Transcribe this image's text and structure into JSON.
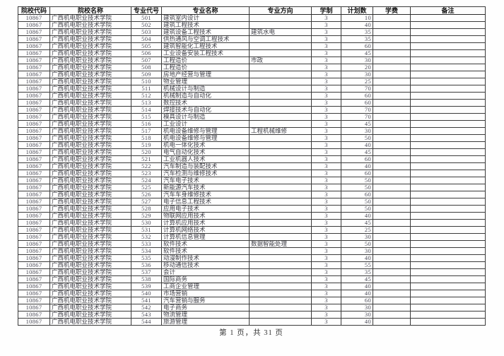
{
  "page": {
    "footer": "第 1 页，共 31 页"
  },
  "colors": {
    "background": "#ffffff",
    "border": "#2a2a2a",
    "text": "#42424a",
    "header_text": "#141414"
  },
  "table": {
    "columns": [
      "院校代码",
      "院校名称",
      "专业代号",
      "专业名称",
      "专业方向",
      "学制",
      "计划数",
      "学费",
      "备注"
    ],
    "rows": [
      [
        "10867",
        "广西机电职业技术学院",
        "501",
        "建筑室内设计",
        "",
        "3",
        "10",
        "",
        ""
      ],
      [
        "10867",
        "广西机电职业技术学院",
        "502",
        "建筑工程技术",
        "",
        "3",
        "40",
        "",
        ""
      ],
      [
        "10867",
        "广西机电职业技术学院",
        "503",
        "建筑设备工程技术",
        "建筑水电",
        "3",
        "35",
        "",
        ""
      ],
      [
        "10867",
        "广西机电职业技术学院",
        "504",
        "供热通风与空调工程技术",
        "",
        "3",
        "35",
        "",
        ""
      ],
      [
        "10867",
        "广西机电职业技术学院",
        "505",
        "建筑智能化工程技术",
        "",
        "3",
        "60",
        "",
        ""
      ],
      [
        "10867",
        "广西机电职业技术学院",
        "506",
        "工业设备安装工程技术",
        "",
        "3",
        "45",
        "",
        ""
      ],
      [
        "10867",
        "广西机电职业技术学院",
        "507",
        "工程造价",
        "市政",
        "3",
        "30",
        "",
        ""
      ],
      [
        "10867",
        "广西机电职业技术学院",
        "508",
        "工程造价",
        "",
        "3",
        "20",
        "",
        ""
      ],
      [
        "10867",
        "广西机电职业技术学院",
        "509",
        "房地产经营与管理",
        "",
        "3",
        "30",
        "",
        ""
      ],
      [
        "10867",
        "广西机电职业技术学院",
        "510",
        "物业管理",
        "",
        "3",
        "25",
        "",
        ""
      ],
      [
        "10867",
        "广西机电职业技术学院",
        "511",
        "机械设计与制造",
        "",
        "3",
        "70",
        "",
        ""
      ],
      [
        "10867",
        "广西机电职业技术学院",
        "512",
        "机械制造与自动化",
        "",
        "3",
        "60",
        "",
        ""
      ],
      [
        "10867",
        "广西机电职业技术学院",
        "513",
        "数控技术",
        "",
        "3",
        "60",
        "",
        ""
      ],
      [
        "10867",
        "广西机电职业技术学院",
        "514",
        "焊接技术与自动化",
        "",
        "3",
        "70",
        "",
        ""
      ],
      [
        "10867",
        "广西机电职业技术学院",
        "515",
        "模具设计与制造",
        "",
        "3",
        "70",
        "",
        ""
      ],
      [
        "10867",
        "广西机电职业技术学院",
        "516",
        "工业设计",
        "",
        "3",
        "45",
        "",
        ""
      ],
      [
        "10867",
        "广西机电职业技术学院",
        "517",
        "机电设备维修与管理",
        "工程机械维修",
        "3",
        "30",
        "",
        ""
      ],
      [
        "10867",
        "广西机电职业技术学院",
        "518",
        "机电设备维修与管理",
        "",
        "3",
        "50",
        "",
        ""
      ],
      [
        "10867",
        "广西机电职业技术学院",
        "519",
        "机电一体化技术",
        "",
        "3",
        "40",
        "",
        ""
      ],
      [
        "10867",
        "广西机电职业技术学院",
        "520",
        "电气自动化技术",
        "",
        "3",
        "45",
        "",
        ""
      ],
      [
        "10867",
        "广西机电职业技术学院",
        "521",
        "工业机器人技术",
        "",
        "3",
        "60",
        "",
        ""
      ],
      [
        "10867",
        "广西机电职业技术学院",
        "522",
        "汽车制造与装配技术",
        "",
        "3",
        "40",
        "",
        ""
      ],
      [
        "10867",
        "广西机电职业技术学院",
        "523",
        "汽车检测与维修技术",
        "",
        "3",
        "60",
        "",
        ""
      ],
      [
        "10867",
        "广西机电职业技术学院",
        "524",
        "汽车电子技术",
        "",
        "3",
        "50",
        "",
        ""
      ],
      [
        "10867",
        "广西机电职业技术学院",
        "525",
        "新能源汽车技术",
        "",
        "3",
        "50",
        "",
        ""
      ],
      [
        "10867",
        "广西机电职业技术学院",
        "526",
        "汽车车身维修技术",
        "",
        "3",
        "60",
        "",
        ""
      ],
      [
        "10867",
        "广西机电职业技术学院",
        "527",
        "电子信息工程技术",
        "",
        "3",
        "50",
        "",
        ""
      ],
      [
        "10867",
        "广西机电职业技术学院",
        "528",
        "应用电子技术",
        "",
        "3",
        "50",
        "",
        ""
      ],
      [
        "10867",
        "广西机电职业技术学院",
        "529",
        "物联网应用技术",
        "",
        "3",
        "40",
        "",
        ""
      ],
      [
        "10867",
        "广西机电职业技术学院",
        "530",
        "计算机应用技术",
        "",
        "3",
        "45",
        "",
        ""
      ],
      [
        "10867",
        "广西机电职业技术学院",
        "531",
        "计算机网络技术",
        "",
        "3",
        "25",
        "",
        ""
      ],
      [
        "10867",
        "广西机电职业技术学院",
        "532",
        "计算机信息管理",
        "",
        "3",
        "30",
        "",
        ""
      ],
      [
        "10867",
        "广西机电职业技术学院",
        "533",
        "软件技术",
        "数据智能处理",
        "3",
        "50",
        "",
        ""
      ],
      [
        "10867",
        "广西机电职业技术学院",
        "534",
        "软件技术",
        "",
        "3",
        "30",
        "",
        ""
      ],
      [
        "10867",
        "广西机电职业技术学院",
        "535",
        "动漫制作技术",
        "",
        "3",
        "40",
        "",
        ""
      ],
      [
        "10867",
        "广西机电职业技术学院",
        "536",
        "移动通信技术",
        "",
        "3",
        "55",
        "",
        ""
      ],
      [
        "10867",
        "广西机电职业技术学院",
        "537",
        "会计",
        "",
        "3",
        "35",
        "",
        ""
      ],
      [
        "10867",
        "广西机电职业技术学院",
        "538",
        "国际商务",
        "",
        "3",
        "45",
        "",
        ""
      ],
      [
        "10867",
        "广西机电职业技术学院",
        "539",
        "工商企业管理",
        "",
        "3",
        "40",
        "",
        ""
      ],
      [
        "10867",
        "广西机电职业技术学院",
        "540",
        "市场营销",
        "",
        "3",
        "40",
        "",
        ""
      ],
      [
        "10867",
        "广西机电职业技术学院",
        "541",
        "汽车营销与服务",
        "",
        "3",
        "60",
        "",
        ""
      ],
      [
        "10867",
        "广西机电职业技术学院",
        "542",
        "电子商务",
        "",
        "3",
        "30",
        "",
        ""
      ],
      [
        "10867",
        "广西机电职业技术学院",
        "543",
        "物流管理",
        "",
        "3",
        "30",
        "",
        ""
      ],
      [
        "10867",
        "广西机电职业技术学院",
        "544",
        "旅游管理",
        "",
        "3",
        "40",
        "",
        ""
      ]
    ]
  }
}
